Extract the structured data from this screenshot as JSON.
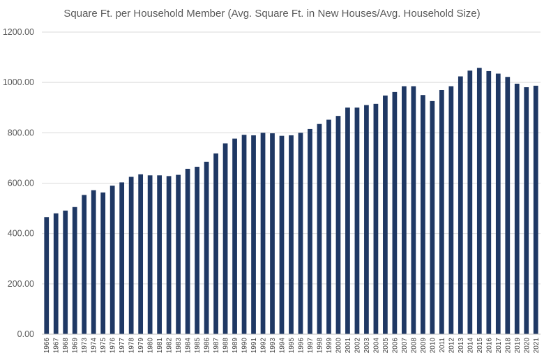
{
  "chart_data": {
    "type": "bar",
    "title": "Square Ft. per Household Member (Avg. Square Ft. in New Houses/Avg. Household Size)",
    "xlabel": "",
    "ylabel": "",
    "ylim": [
      0,
      1200
    ],
    "y_ticks": [
      "0.00",
      "200.00",
      "400.00",
      "600.00",
      "800.00",
      "1000.00",
      "1200.00"
    ],
    "grid": true,
    "legend": "none",
    "bar_color": "#1f3864",
    "categories": [
      "1966",
      "1967",
      "1968",
      "1969",
      "1973",
      "1974",
      "1975",
      "1976",
      "1977",
      "1978",
      "1979",
      "1980",
      "1981",
      "1982",
      "1983",
      "1984",
      "1985",
      "1986",
      "1987",
      "1988",
      "1989",
      "1990",
      "1991",
      "1992",
      "1993",
      "1994",
      "1995",
      "1996",
      "1997",
      "1998",
      "1999",
      "2000",
      "2001",
      "2002",
      "2003",
      "2004",
      "2005",
      "2006",
      "2007",
      "2008",
      "2009",
      "2010",
      "2011",
      "2012",
      "2013",
      "2014",
      "2015",
      "2016",
      "2017",
      "2018",
      "2019",
      "2020",
      "2021"
    ],
    "values": [
      465,
      480,
      491,
      505,
      553,
      572,
      563,
      590,
      603,
      625,
      635,
      631,
      631,
      628,
      633,
      657,
      665,
      685,
      718,
      758,
      777,
      792,
      790,
      800,
      798,
      788,
      790,
      800,
      815,
      835,
      852,
      867,
      900,
      900,
      910,
      915,
      948,
      962,
      985,
      985,
      950,
      926,
      970,
      985,
      1024,
      1047,
      1058,
      1045,
      1035,
      1022,
      995,
      981,
      987
    ]
  }
}
